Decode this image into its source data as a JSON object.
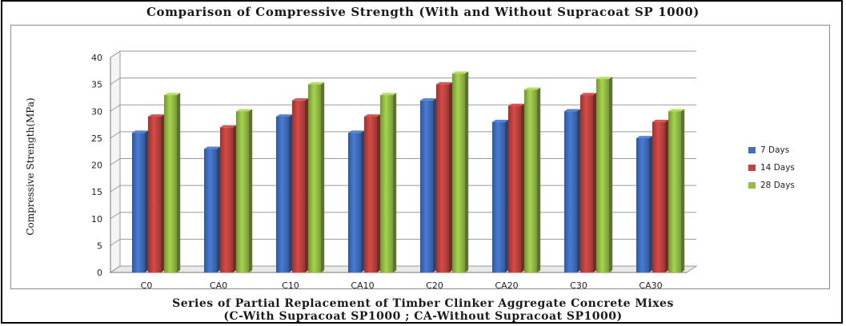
{
  "chart_data": {
    "type": "bar",
    "title": "Comparison of Compressive Strength (With and Without Supracoat SP 1000)",
    "xlabel_line1": "Series of Partial Replacement of Timber Clinker Aggregate Concrete Mixes",
    "xlabel_line2": "(C-With Supracoat SP1000 ; CA-Without Supracoat SP1000)",
    "ylabel": "Compressive Strength(MPa)",
    "categories": [
      "C0",
      "CA0",
      "C10",
      "CA10",
      "C20",
      "CA20",
      "C30",
      "CA30"
    ],
    "ylim": [
      0,
      40
    ],
    "yticks": [
      0,
      5,
      10,
      15,
      20,
      25,
      30,
      35,
      40
    ],
    "grid": true,
    "legend_position": "right",
    "series": [
      {
        "name": "7 Days",
        "color": "#3f6fbf",
        "values": [
          26,
          23,
          29,
          26,
          32,
          28,
          30,
          25
        ]
      },
      {
        "name": "14 Days",
        "color": "#c0433f",
        "values": [
          29,
          27,
          32,
          29,
          35,
          31,
          33,
          28
        ]
      },
      {
        "name": "28 Days",
        "color": "#94bd45",
        "values": [
          33,
          30,
          35,
          33,
          37,
          34,
          36,
          30
        ]
      }
    ]
  }
}
